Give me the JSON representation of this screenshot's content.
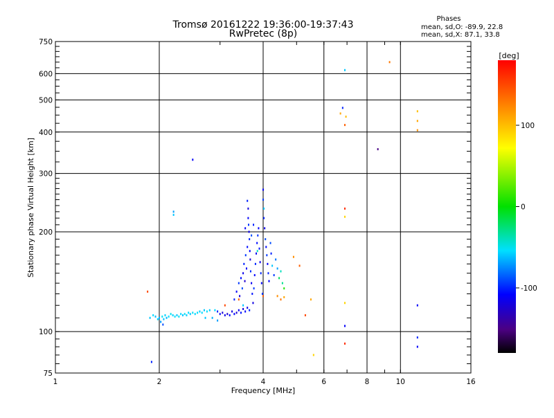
{
  "chart_data": {
    "type": "scatter",
    "title": "Tromsø 20161222 19:36:00-19:37:43",
    "subtitle": "RwPretec (8p)",
    "xlabel": "Frequency [MHz]",
    "ylabel": "Stationary phase Virtual Height [km]",
    "x_scale": "log",
    "y_scale": "log",
    "xlim": [
      1,
      16
    ],
    "ylim": [
      75,
      750
    ],
    "x_ticks": [
      1,
      2,
      4,
      6,
      8,
      10,
      16
    ],
    "y_ticks": [
      75,
      100,
      200,
      300,
      400,
      500,
      600,
      750
    ],
    "x_ticklabels": [
      "1",
      "2",
      "4",
      "6",
      "8",
      "10",
      "16"
    ],
    "y_ticklabels": [
      "75",
      "100",
      "200",
      "300",
      "400",
      "500",
      "600",
      "750"
    ],
    "grid": true,
    "phase_box": {
      "title": "Phases",
      "line1": "mean, sd,O: -89.9, 22.8",
      "line2": "mean, sd,X:  87.1, 33.8"
    },
    "colorbar": {
      "label": "[deg]",
      "min": -180,
      "max": 180,
      "ticks": [
        100,
        0,
        -100
      ],
      "ticklabels": [
        "100",
        "0",
        "-100"
      ]
    },
    "points": [
      {
        "f": 1.85,
        "h": 132,
        "p": 150
      },
      {
        "f": 1.9,
        "h": 81,
        "p": -100
      },
      {
        "f": 1.88,
        "h": 110,
        "p": -60
      },
      {
        "f": 1.92,
        "h": 112,
        "p": -55
      },
      {
        "f": 1.95,
        "h": 111,
        "p": -62
      },
      {
        "f": 1.98,
        "h": 109,
        "p": -58
      },
      {
        "f": 2.0,
        "h": 110,
        "p": -65
      },
      {
        "f": 2.02,
        "h": 107,
        "p": -70
      },
      {
        "f": 2.04,
        "h": 111,
        "p": -52
      },
      {
        "f": 2.06,
        "h": 109,
        "p": -60
      },
      {
        "f": 2.08,
        "h": 112,
        "p": -57
      },
      {
        "f": 2.1,
        "h": 110,
        "p": -63
      },
      {
        "f": 2.05,
        "h": 105,
        "p": -90
      },
      {
        "f": 2.13,
        "h": 111,
        "p": -55
      },
      {
        "f": 2.16,
        "h": 113,
        "p": -50
      },
      {
        "f": 2.19,
        "h": 112,
        "p": -58
      },
      {
        "f": 2.22,
        "h": 111,
        "p": -54
      },
      {
        "f": 2.25,
        "h": 112,
        "p": -60
      },
      {
        "f": 2.28,
        "h": 111,
        "p": -52
      },
      {
        "f": 2.31,
        "h": 113,
        "p": -56
      },
      {
        "f": 2.34,
        "h": 112,
        "p": -61
      },
      {
        "f": 2.37,
        "h": 113,
        "p": -53
      },
      {
        "f": 2.4,
        "h": 112,
        "p": -58
      },
      {
        "f": 2.43,
        "h": 114,
        "p": -55
      },
      {
        "f": 2.46,
        "h": 113,
        "p": -60
      },
      {
        "f": 2.5,
        "h": 114,
        "p": -52
      },
      {
        "f": 2.54,
        "h": 113,
        "p": -57
      },
      {
        "f": 2.58,
        "h": 114,
        "p": -54
      },
      {
        "f": 2.62,
        "h": 115,
        "p": -59
      },
      {
        "f": 2.66,
        "h": 114,
        "p": -55
      },
      {
        "f": 2.7,
        "h": 116,
        "p": -60
      },
      {
        "f": 2.75,
        "h": 115,
        "p": -53
      },
      {
        "f": 2.8,
        "h": 116,
        "p": -58
      },
      {
        "f": 2.85,
        "h": 110,
        "p": -65
      },
      {
        "f": 2.9,
        "h": 116,
        "p": -56
      },
      {
        "f": 2.95,
        "h": 115,
        "p": -100
      },
      {
        "f": 3.0,
        "h": 113,
        "p": -110
      },
      {
        "f": 3.05,
        "h": 114,
        "p": -120
      },
      {
        "f": 3.1,
        "h": 112,
        "p": -115
      },
      {
        "f": 3.15,
        "h": 113,
        "p": -125
      },
      {
        "f": 3.2,
        "h": 112,
        "p": -105
      },
      {
        "f": 3.25,
        "h": 115,
        "p": -118
      },
      {
        "f": 3.3,
        "h": 113,
        "p": -108
      },
      {
        "f": 3.35,
        "h": 114,
        "p": -122
      },
      {
        "f": 3.4,
        "h": 116,
        "p": -112
      },
      {
        "f": 3.45,
        "h": 114,
        "p": -104
      },
      {
        "f": 3.5,
        "h": 117,
        "p": -119
      },
      {
        "f": 3.55,
        "h": 115,
        "p": -108
      },
      {
        "f": 3.6,
        "h": 118,
        "p": -113
      },
      {
        "f": 3.65,
        "h": 116,
        "p": -100
      },
      {
        "f": 2.95,
        "h": 108,
        "p": -70
      },
      {
        "f": 2.72,
        "h": 110,
        "p": -60
      },
      {
        "f": 2.2,
        "h": 225,
        "p": -60
      },
      {
        "f": 2.2,
        "h": 230,
        "p": -70
      },
      {
        "f": 2.5,
        "h": 330,
        "p": -110
      },
      {
        "f": 3.3,
        "h": 125,
        "p": -100
      },
      {
        "f": 3.35,
        "h": 132,
        "p": -110
      },
      {
        "f": 3.4,
        "h": 140,
        "p": -95
      },
      {
        "f": 3.42,
        "h": 128,
        "p": -120
      },
      {
        "f": 3.45,
        "h": 145,
        "p": -105
      },
      {
        "f": 3.48,
        "h": 135,
        "p": -90
      },
      {
        "f": 3.5,
        "h": 150,
        "p": -115
      },
      {
        "f": 3.52,
        "h": 160,
        "p": -100
      },
      {
        "f": 3.54,
        "h": 142,
        "p": -125
      },
      {
        "f": 3.56,
        "h": 170,
        "p": -95
      },
      {
        "f": 3.58,
        "h": 155,
        "p": -110
      },
      {
        "f": 3.6,
        "h": 180,
        "p": -105
      },
      {
        "f": 3.6,
        "h": 248,
        "p": -100
      },
      {
        "f": 3.62,
        "h": 235,
        "p": -120
      },
      {
        "f": 3.62,
        "h": 220,
        "p": -110
      },
      {
        "f": 3.63,
        "h": 210,
        "p": -95
      },
      {
        "f": 3.64,
        "h": 200,
        "p": -115
      },
      {
        "f": 3.65,
        "h": 190,
        "p": -100
      },
      {
        "f": 3.66,
        "h": 175,
        "p": -108
      },
      {
        "f": 3.67,
        "h": 165,
        "p": -122
      },
      {
        "f": 3.68,
        "h": 152,
        "p": -98
      },
      {
        "f": 3.7,
        "h": 140,
        "p": -112
      },
      {
        "f": 3.72,
        "h": 130,
        "p": -104
      },
      {
        "f": 3.74,
        "h": 122,
        "p": -118
      },
      {
        "f": 3.76,
        "h": 135,
        "p": -95
      },
      {
        "f": 3.78,
        "h": 148,
        "p": -108
      },
      {
        "f": 3.8,
        "h": 160,
        "p": -100
      },
      {
        "f": 3.82,
        "h": 172,
        "p": -113
      },
      {
        "f": 3.84,
        "h": 185,
        "p": -105
      },
      {
        "f": 3.86,
        "h": 195,
        "p": -97
      },
      {
        "f": 3.88,
        "h": 205,
        "p": -110
      },
      {
        "f": 3.9,
        "h": 178,
        "p": -102
      },
      {
        "f": 3.92,
        "h": 162,
        "p": -115
      },
      {
        "f": 3.94,
        "h": 150,
        "p": -99
      },
      {
        "f": 3.96,
        "h": 140,
        "p": -107
      },
      {
        "f": 3.98,
        "h": 130,
        "p": -95
      },
      {
        "f": 4.0,
        "h": 268,
        "p": -110
      },
      {
        "f": 4.0,
        "h": 250,
        "p": -95
      },
      {
        "f": 4.02,
        "h": 235,
        "p": -60
      },
      {
        "f": 4.02,
        "h": 220,
        "p": -100
      },
      {
        "f": 4.04,
        "h": 205,
        "p": -115
      },
      {
        "f": 4.06,
        "h": 190,
        "p": -90
      },
      {
        "f": 4.08,
        "h": 180,
        "p": -105
      },
      {
        "f": 4.1,
        "h": 170,
        "p": -95
      },
      {
        "f": 4.12,
        "h": 160,
        "p": -110
      },
      {
        "f": 4.14,
        "h": 150,
        "p": -100
      },
      {
        "f": 4.16,
        "h": 142,
        "p": -108
      },
      {
        "f": 4.2,
        "h": 185,
        "p": -90
      },
      {
        "f": 4.22,
        "h": 172,
        "p": -100
      },
      {
        "f": 4.25,
        "h": 158,
        "p": -60
      },
      {
        "f": 4.3,
        "h": 148,
        "p": -95
      },
      {
        "f": 4.35,
        "h": 165,
        "p": -80
      },
      {
        "f": 4.4,
        "h": 155,
        "p": -70
      },
      {
        "f": 4.45,
        "h": 145,
        "p": -20
      },
      {
        "f": 4.5,
        "h": 152,
        "p": -40
      },
      {
        "f": 4.55,
        "h": 140,
        "p": -30
      },
      {
        "f": 4.6,
        "h": 135,
        "p": 10
      },
      {
        "f": 4.4,
        "h": 128,
        "p": 120
      },
      {
        "f": 4.5,
        "h": 125,
        "p": 130
      },
      {
        "f": 4.6,
        "h": 127,
        "p": 110
      },
      {
        "f": 4.0,
        "h": 128,
        "p": 140
      },
      {
        "f": 3.4,
        "h": 125,
        "p": 140
      },
      {
        "f": 3.1,
        "h": 120,
        "p": 150
      },
      {
        "f": 3.5,
        "h": 120,
        "p": -60
      },
      {
        "f": 3.7,
        "h": 195,
        "p": -90
      },
      {
        "f": 3.55,
        "h": 205,
        "p": -110
      },
      {
        "f": 3.75,
        "h": 210,
        "p": -100
      },
      {
        "f": 3.85,
        "h": 175,
        "p": -40
      },
      {
        "f": 4.9,
        "h": 168,
        "p": 120
      },
      {
        "f": 5.1,
        "h": 158,
        "p": 140
      },
      {
        "f": 5.3,
        "h": 112,
        "p": 150
      },
      {
        "f": 5.5,
        "h": 125,
        "p": 110
      },
      {
        "f": 5.6,
        "h": 85,
        "p": 90
      },
      {
        "f": 6.9,
        "h": 615,
        "p": -60
      },
      {
        "f": 6.8,
        "h": 473,
        "p": -100
      },
      {
        "f": 6.7,
        "h": 455,
        "p": 110
      },
      {
        "f": 6.95,
        "h": 445,
        "p": 100
      },
      {
        "f": 6.9,
        "h": 420,
        "p": 140
      },
      {
        "f": 6.9,
        "h": 235,
        "p": 160
      },
      {
        "f": 6.9,
        "h": 222,
        "p": 90
      },
      {
        "f": 6.9,
        "h": 122,
        "p": 90
      },
      {
        "f": 6.9,
        "h": 104,
        "p": -110
      },
      {
        "f": 6.9,
        "h": 92,
        "p": 160
      },
      {
        "f": 8.6,
        "h": 355,
        "p": -150
      },
      {
        "f": 9.3,
        "h": 650,
        "p": 130
      },
      {
        "f": 11.2,
        "h": 462,
        "p": 100
      },
      {
        "f": 11.2,
        "h": 432,
        "p": 110
      },
      {
        "f": 11.2,
        "h": 405,
        "p": 120
      },
      {
        "f": 11.2,
        "h": 120,
        "p": -110
      },
      {
        "f": 11.2,
        "h": 96,
        "p": -100
      },
      {
        "f": 11.2,
        "h": 90,
        "p": -110
      }
    ]
  }
}
